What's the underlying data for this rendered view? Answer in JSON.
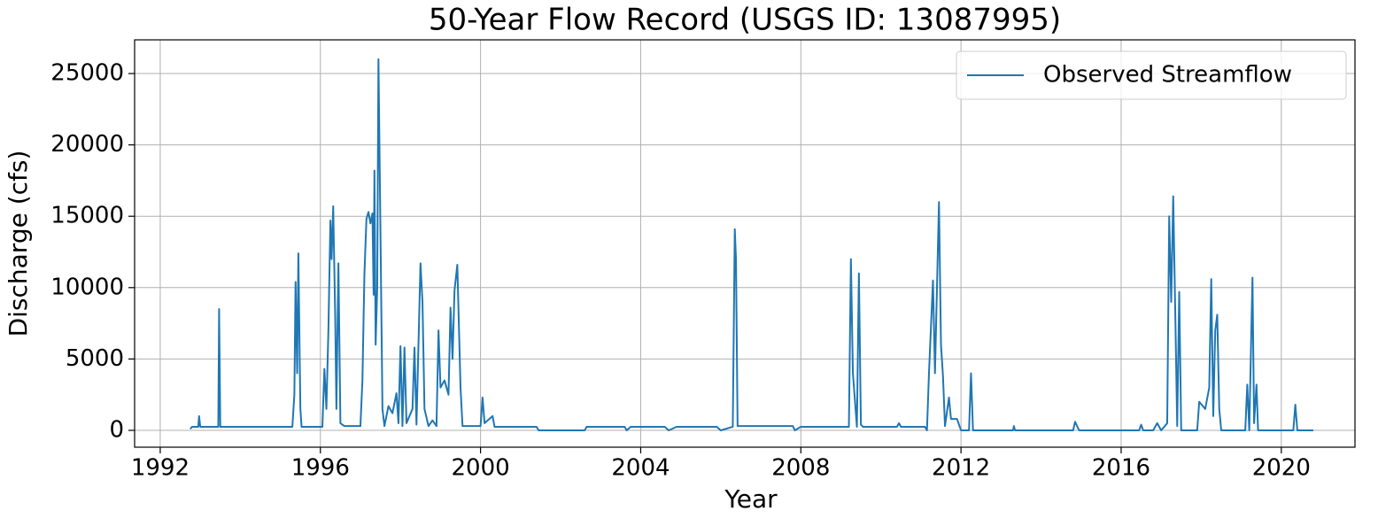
{
  "chart_data": {
    "type": "line",
    "title": "50-Year Flow Record (USGS ID: 13087995)",
    "x_label": "Year",
    "y_label": "Discharge (cfs)",
    "x": [
      1992.75,
      1992.8,
      1992.95,
      1992.97,
      1993.0,
      1993.45,
      1993.47,
      1993.5,
      1995.3,
      1995.35,
      1995.38,
      1995.42,
      1995.45,
      1995.5,
      1995.53,
      1996.05,
      1996.1,
      1996.15,
      1996.2,
      1996.25,
      1996.28,
      1996.32,
      1996.37,
      1996.4,
      1996.45,
      1996.5,
      1996.6,
      1997.0,
      1997.05,
      1997.1,
      1997.15,
      1997.2,
      1997.25,
      1997.3,
      1997.33,
      1997.35,
      1997.38,
      1997.42,
      1997.45,
      1997.5,
      1997.55,
      1997.6,
      1997.7,
      1997.8,
      1997.9,
      1997.95,
      1998.0,
      1998.05,
      1998.1,
      1998.15,
      1998.3,
      1998.35,
      1998.4,
      1998.5,
      1998.55,
      1998.6,
      1998.7,
      1998.8,
      1998.9,
      1998.95,
      1999.0,
      1999.1,
      1999.2,
      1999.25,
      1999.3,
      1999.35,
      1999.42,
      1999.5,
      1999.55,
      2000.0,
      2000.05,
      2000.1,
      2000.3,
      2000.35,
      2001.4,
      2001.45,
      2002.6,
      2002.65,
      2003.6,
      2003.65,
      2003.75,
      2004.6,
      2004.7,
      2004.9,
      2005.9,
      2006.0,
      2006.3,
      2006.35,
      2006.38,
      2006.42,
      2007.8,
      2007.85,
      2008.0,
      2009.2,
      2009.25,
      2009.3,
      2009.4,
      2009.45,
      2009.5,
      2009.55,
      2010.4,
      2010.45,
      2010.5,
      2011.1,
      2011.15,
      2011.2,
      2011.3,
      2011.35,
      2011.45,
      2011.5,
      2011.55,
      2011.6,
      2011.7,
      2011.75,
      2011.9,
      2012.0,
      2012.2,
      2012.25,
      2012.3,
      2013.3,
      2013.32,
      2013.35,
      2014.8,
      2014.85,
      2014.95,
      2016.45,
      2016.5,
      2016.55,
      2016.8,
      2016.9,
      2017.0,
      2017.15,
      2017.2,
      2017.25,
      2017.3,
      2017.35,
      2017.4,
      2017.45,
      2017.5,
      2017.9,
      2017.95,
      2018.1,
      2018.2,
      2018.25,
      2018.3,
      2018.35,
      2018.4,
      2018.45,
      2018.5,
      2019.1,
      2019.15,
      2019.2,
      2019.28,
      2019.32,
      2019.38,
      2019.42,
      2020.3,
      2020.35,
      2020.4,
      2020.8
    ],
    "series": [
      {
        "name": "Observed Streamflow",
        "color": "#1f77b4",
        "values": [
          100,
          250,
          250,
          1000,
          250,
          250,
          8500,
          250,
          250,
          2500,
          10400,
          4000,
          12400,
          1500,
          250,
          250,
          4300,
          1500,
          7000,
          14700,
          12000,
          15700,
          8000,
          1500,
          11700,
          500,
          300,
          300,
          3500,
          11000,
          14800,
          15300,
          14500,
          15200,
          9500,
          18200,
          6000,
          10000,
          26000,
          14000,
          1500,
          300,
          1700,
          1200,
          2600,
          500,
          5900,
          300,
          5800,
          500,
          1500,
          5800,
          400,
          11700,
          9000,
          1500,
          300,
          700,
          300,
          7000,
          3000,
          3500,
          2500,
          8600,
          5000,
          9800,
          11600,
          3000,
          300,
          300,
          2300,
          500,
          1000,
          250,
          250,
          0,
          0,
          250,
          250,
          0,
          250,
          250,
          0,
          250,
          250,
          0,
          250,
          14100,
          12000,
          300,
          300,
          0,
          250,
          250,
          12000,
          4000,
          250,
          11000,
          400,
          250,
          250,
          500,
          250,
          250,
          0,
          4000,
          10500,
          4000,
          16000,
          6000,
          3800,
          300,
          2300,
          800,
          800,
          0,
          0,
          4000,
          0,
          0,
          300,
          0,
          0,
          600,
          0,
          0,
          400,
          0,
          0,
          500,
          0,
          500,
          15000,
          9000,
          16400,
          8500,
          300,
          9700,
          0,
          0,
          2000,
          1500,
          3000,
          10600,
          1000,
          7000,
          8100,
          1500,
          0,
          0,
          3200,
          0,
          10700,
          500,
          3200,
          0,
          0,
          1800,
          0,
          0
        ]
      }
    ],
    "xlim": [
      1991.36,
      2021.84
    ],
    "xticks": [
      1992,
      1996,
      2000,
      2004,
      2008,
      2012,
      2016,
      2020
    ],
    "ylim": [
      -1180,
      27360
    ],
    "yticks": [
      0,
      5000,
      10000,
      15000,
      20000,
      25000
    ],
    "grid": true,
    "legend": "upper right"
  }
}
